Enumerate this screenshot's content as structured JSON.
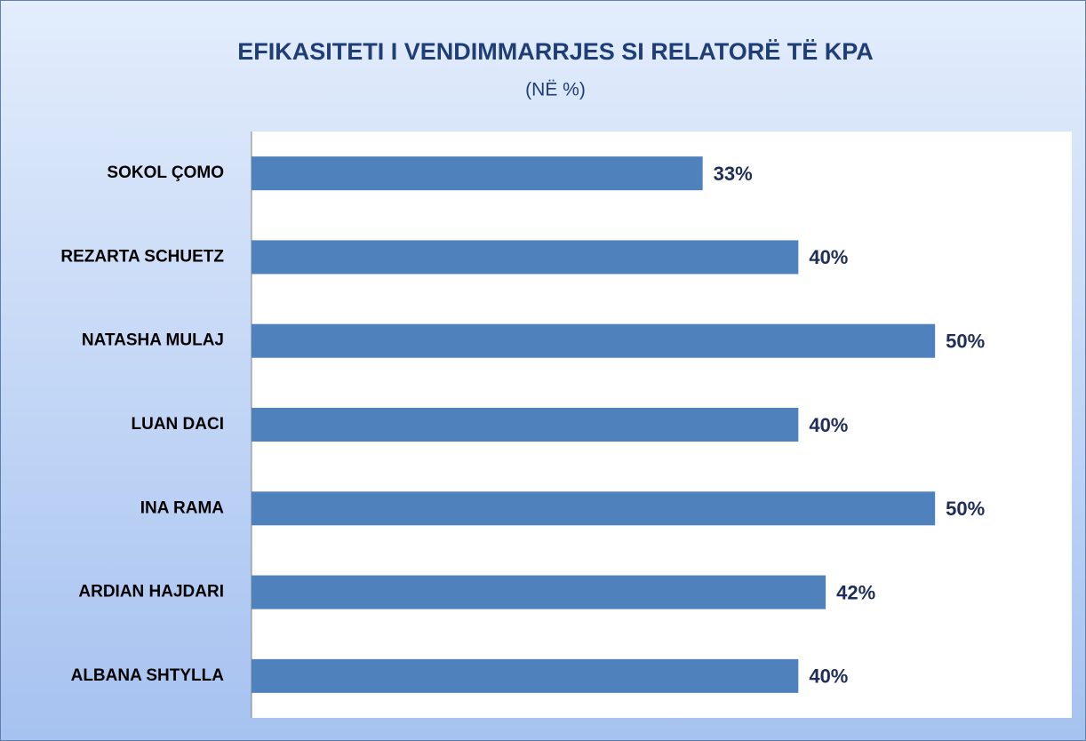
{
  "chart_data": {
    "type": "bar",
    "orientation": "horizontal",
    "title": "EFIKASITETI I VENDIMMARRJES SI RELATORË TË KPA",
    "subtitle": "(NË %)",
    "categories": [
      "SOKOL ÇOMO",
      "REZARTA SCHUETZ",
      "NATASHA MULAJ",
      "LUAN DACI",
      "INA RAMA",
      "ARDIAN HAJDARI",
      "ALBANA SHTYLLA"
    ],
    "values": [
      33,
      40,
      50,
      40,
      50,
      42,
      40
    ],
    "value_labels": [
      "33%",
      "40%",
      "50%",
      "40%",
      "50%",
      "42%",
      "40%"
    ],
    "color": "#4f81bd",
    "xlim": [
      0,
      60
    ]
  }
}
